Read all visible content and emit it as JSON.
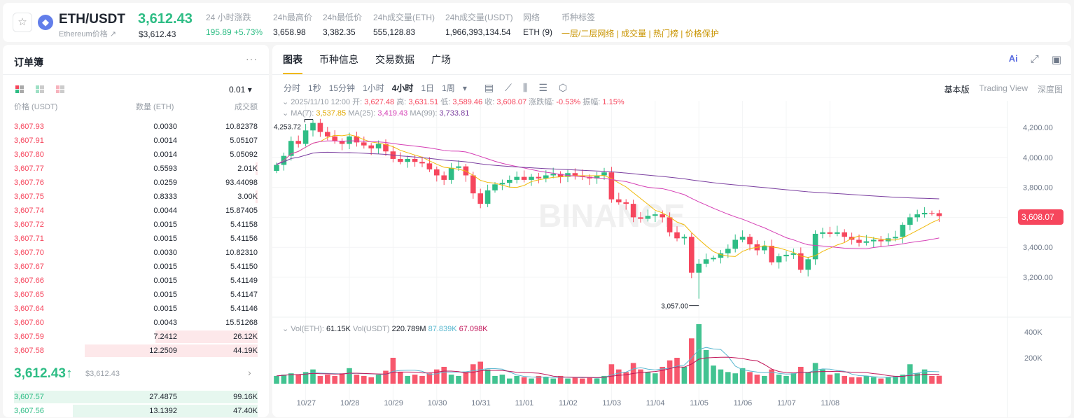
{
  "header": {
    "symbol": "ETH/USDT",
    "subtitle": "Ethereum价格 ↗",
    "last_price": "3,612.43",
    "last_price_usd": "$3,612.43",
    "stats": [
      {
        "label": "24 小时涨跌",
        "value": "195.89 +5.73%",
        "color": "#2ebd85"
      },
      {
        "label": "24h最高价",
        "value": "3,658.98"
      },
      {
        "label": "24h最低价",
        "value": "3,382.35"
      },
      {
        "label": "24h成交量(ETH)",
        "value": "555,128.83"
      },
      {
        "label": "24h成交量(USDT)",
        "value": "1,966,393,134.54"
      },
      {
        "label": "网络",
        "value": "ETH (9)"
      }
    ],
    "tags_label": "币种标签",
    "tags": [
      "一层/二层网络",
      "成交量",
      "热门榜",
      "价格保护"
    ]
  },
  "orderbook": {
    "title": "订单簿",
    "more": "···",
    "precision": "0.01 ▾",
    "headers": [
      "价格 (USDT)",
      "数量 (ETH)",
      "成交额"
    ],
    "asks": [
      [
        "3,607.93",
        "0.0030",
        "10.82378",
        0
      ],
      [
        "3,607.91",
        "0.0014",
        "5.05107",
        0
      ],
      [
        "3,607.80",
        "0.0014",
        "5.05092",
        0
      ],
      [
        "3,607.77",
        "0.5593",
        "2.01K",
        0.01
      ],
      [
        "3,607.76",
        "0.0259",
        "93.44098",
        0
      ],
      [
        "3,607.75",
        "0.8333",
        "3.00K",
        0.01
      ],
      [
        "3,607.74",
        "0.0044",
        "15.87405",
        0
      ],
      [
        "3,607.72",
        "0.0015",
        "5.41158",
        0
      ],
      [
        "3,607.71",
        "0.0015",
        "5.41156",
        0
      ],
      [
        "3,607.70",
        "0.0030",
        "10.82310",
        0
      ],
      [
        "3,607.67",
        "0.0015",
        "5.41150",
        0
      ],
      [
        "3,607.66",
        "0.0015",
        "5.41149",
        0
      ],
      [
        "3,607.65",
        "0.0015",
        "5.41147",
        0
      ],
      [
        "3,607.64",
        "0.0015",
        "5.41146",
        0
      ],
      [
        "3,607.60",
        "0.0043",
        "15.51268",
        0
      ],
      [
        "3,607.59",
        "7.2412",
        "26.12K",
        0.42
      ],
      [
        "3,607.58",
        "12.2509",
        "44.19K",
        0.71
      ]
    ],
    "mid_price": "3,612.43↑",
    "mid_usd": "$3,612.43",
    "mid_arrow": "›",
    "bids": [
      [
        "3,607.57",
        "27.4875",
        "99.16K",
        1.0
      ],
      [
        "3,607.56",
        "13.1392",
        "47.40K",
        0.76
      ]
    ]
  },
  "chart": {
    "tabs": [
      "图表",
      "币种信息",
      "交易数据",
      "广场"
    ],
    "active_tab": 0,
    "intervals": [
      "分时",
      "1秒",
      "15分钟",
      "1小时",
      "4小时",
      "1日",
      "1周",
      "▾"
    ],
    "active_interval": 4,
    "tool_icons": [
      "calendar-icon",
      "indicator-icon",
      "candle-type-icon",
      "settings-list-icon",
      "hexagon-settings-icon"
    ],
    "views": [
      "基本版",
      "Trading View",
      "深度图"
    ],
    "active_view": 0,
    "ohlc": {
      "date": "2025/11/10 12:00",
      "open_label": "开:",
      "open": "3,627.48",
      "high_label": "高:",
      "high": "3,631.51",
      "low_label": "低:",
      "low": "3,589.46",
      "close_label": "收:",
      "close": "3,608.07",
      "chg_label": "涨跌幅:",
      "chg": "-0.53%",
      "amp_label": "振幅:",
      "amp": "1.15%"
    },
    "ma": {
      "ma7_label": "MA(7):",
      "ma7": "3,537.85",
      "ma25_label": "MA(25):",
      "ma25": "3,419.43",
      "ma99_label": "MA(99):",
      "ma99": "3,733.81"
    },
    "vol": {
      "eth_label": "Vol(ETH):",
      "eth": "61.15K",
      "usdt_label": "Vol(USDT)",
      "usdt": "220.789M",
      "ma1": "87.839K",
      "ma2": "67.098K"
    },
    "watermark": "BINANCE",
    "colors": {
      "up": "#2ebd85",
      "down": "#f6465d",
      "ma7": "#f0b90b",
      "ma25": "#d53fb5",
      "ma99": "#7b3fa0"
    }
  },
  "chart_data": {
    "type": "candlestick",
    "interval": "4h",
    "start": "2025/10/26 08:00",
    "price_ticks": [
      "4,200.00",
      "4,000.00",
      "3,800.00",
      "3,400.00",
      "3,200.00"
    ],
    "price_tick_values": [
      4200,
      4000,
      3800,
      3400,
      3200
    ],
    "current_price": "3,608.07",
    "high_mark": "4,253.72",
    "low_mark": "3,057.00",
    "volume_ticks": [
      "400K",
      "200K"
    ],
    "date_labels": [
      "10/27",
      "10/28",
      "10/29",
      "10/30",
      "10/31",
      "11/01",
      "11/02",
      "11/03",
      "11/04",
      "11/05",
      "11/06",
      "11/07",
      "11/08"
    ],
    "close": [
      3950,
      4010,
      4110,
      4090,
      4180,
      4230,
      4170,
      4140,
      4110,
      4090,
      4140,
      4100,
      4080,
      4060,
      4090,
      4040,
      3990,
      3970,
      3990,
      3970,
      3960,
      3920,
      3880,
      3850,
      3930,
      3940,
      3880,
      3760,
      3690,
      3780,
      3820,
      3830,
      3850,
      3870,
      3850,
      3870,
      3860,
      3880,
      3890,
      3870,
      3895,
      3880,
      3870,
      3860,
      3880,
      3900,
      3720,
      3700,
      3690,
      3600,
      3590,
      3610,
      3620,
      3600,
      3500,
      3460,
      3470,
      3230,
      3290,
      3320,
      3330,
      3360,
      3390,
      3450,
      3470,
      3420,
      3380,
      3410,
      3300,
      3340,
      3350,
      3360,
      3250,
      3320,
      3490,
      3500,
      3490,
      3500,
      3470,
      3450,
      3430,
      3440,
      3450,
      3440,
      3460,
      3470,
      3550,
      3600,
      3620,
      3630,
      3627.48,
      3608.07
    ],
    "volume_k": [
      60,
      70,
      80,
      70,
      90,
      110,
      60,
      70,
      60,
      80,
      120,
      70,
      60,
      50,
      70,
      100,
      200,
      90,
      60,
      70,
      60,
      80,
      110,
      130,
      70,
      60,
      90,
      150,
      170,
      110,
      60,
      70,
      40,
      60,
      50,
      40,
      60,
      50,
      40,
      60,
      40,
      50,
      40,
      50,
      40,
      60,
      150,
      110,
      90,
      160,
      110,
      90,
      80,
      130,
      180,
      200,
      130,
      350,
      460,
      260,
      140,
      110,
      90,
      80,
      120,
      90,
      70,
      60,
      110,
      70,
      60,
      80,
      130,
      90,
      160,
      110,
      70,
      80,
      60,
      50,
      50,
      60,
      50,
      40,
      50,
      60,
      70,
      150,
      80,
      110,
      60,
      61.15
    ]
  }
}
